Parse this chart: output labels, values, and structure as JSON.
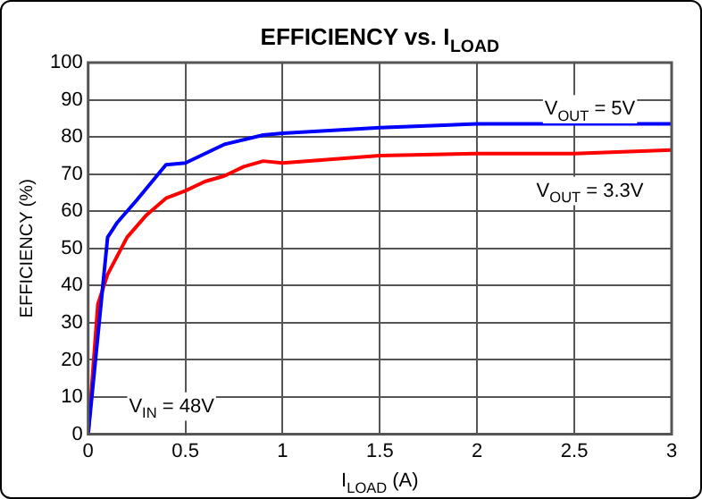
{
  "chart_data": {
    "type": "line",
    "title": "EFFICIENCY vs. I$_{LOAD}$",
    "xlabel": "I$_{LOAD}$ (A)",
    "ylabel": "EFFICIENCY (%)",
    "xlim": [
      0,
      3
    ],
    "xticks": [
      0,
      0.5,
      1,
      1.5,
      2,
      2.5,
      3
    ],
    "ylim": [
      0,
      100
    ],
    "yticks": [
      0,
      10,
      20,
      30,
      40,
      50,
      60,
      70,
      80,
      90,
      100
    ],
    "grid": true,
    "legend": false,
    "marker": "none",
    "line_style": "solid",
    "series": [
      {
        "color": "#0000ff",
        "x": [
          0,
          0.1,
          0.15,
          0.25,
          0.4,
          0.5,
          0.7,
          0.9,
          1,
          1.5,
          2,
          2.5,
          3
        ],
        "values": [
          0,
          53,
          57,
          63,
          72.5,
          73,
          78,
          80.5,
          81,
          82.5,
          83.5,
          83.5,
          83.5
        ]
      },
      {
        "color": "#ff0000",
        "x": [
          0,
          0.05,
          0.1,
          0.2,
          0.3,
          0.4,
          0.5,
          0.6,
          0.7,
          0.8,
          0.9,
          1,
          1.5,
          2,
          2.5,
          3
        ],
        "values": [
          0,
          35,
          43,
          53,
          59,
          63.5,
          65.5,
          68,
          69.5,
          72,
          73.5,
          73,
          75,
          75.5,
          75.5,
          76.5
        ]
      }
    ],
    "annotations": [
      "V$_{OUT}$ = 5V",
      "V$_{OUT}$ = 3.3V",
      "V$_{IN}$ = 48V"
    ]
  }
}
